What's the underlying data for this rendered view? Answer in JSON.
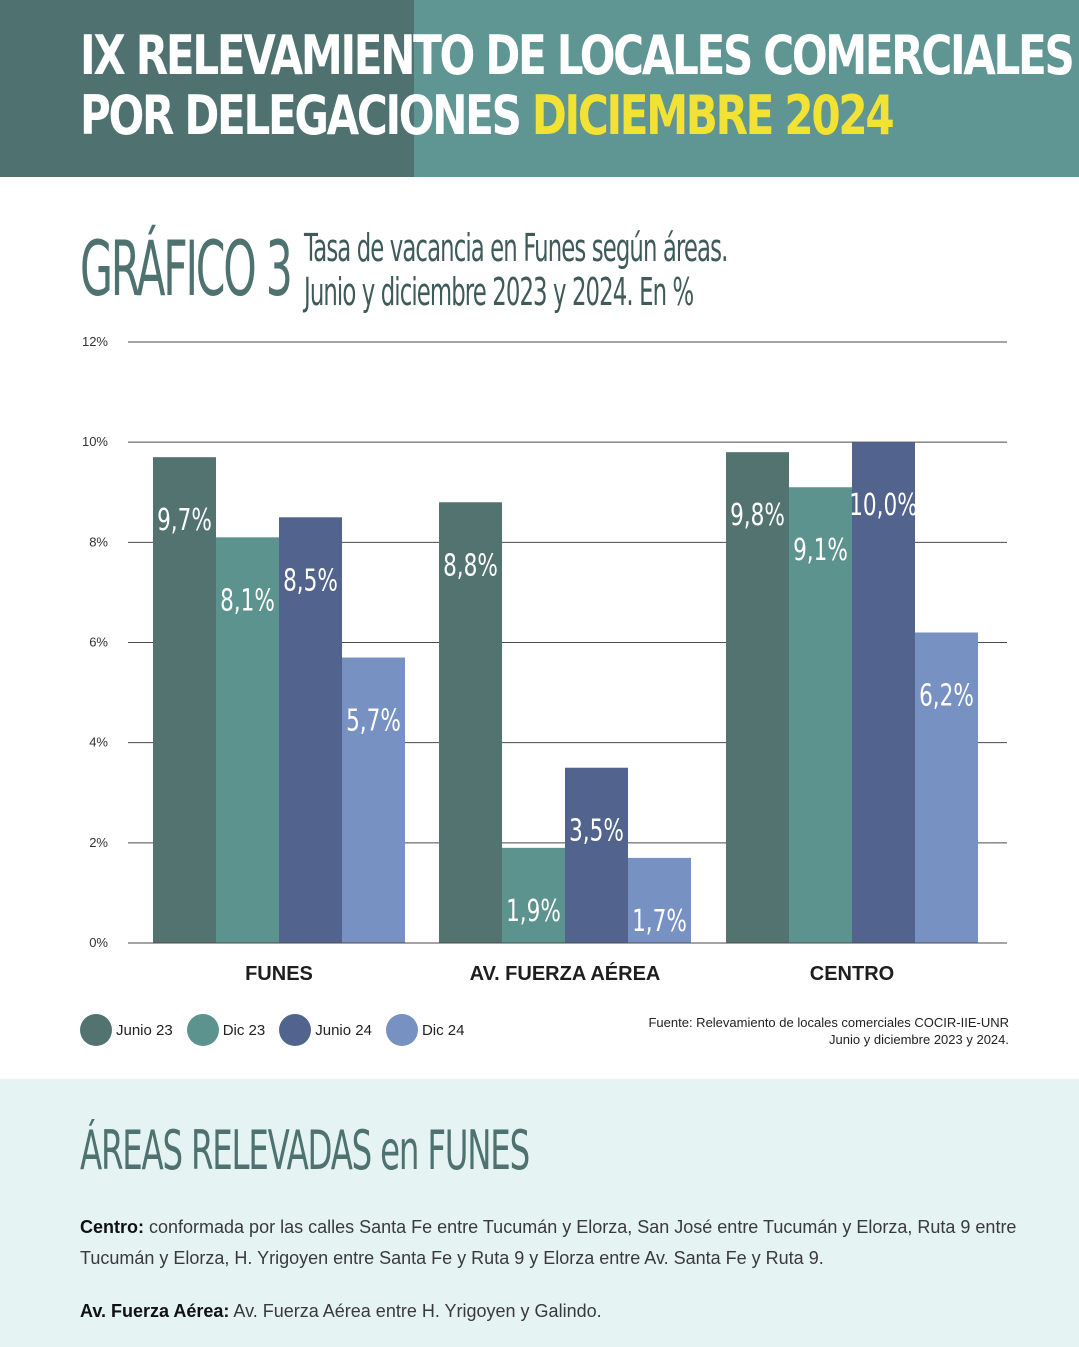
{
  "header": {
    "title_line1": "IX RELEVAMIENTO DE LOCALES COMERCIALES",
    "title_line2": "POR DELEGACIONES",
    "title_highlight": "DICIEMBRE 2024"
  },
  "chart_heading": {
    "label": "GRÁFICO 3",
    "subtitle_line1": "Tasa de vacancia en Funes según áreas.",
    "subtitle_line2": "Junio y diciembre 2023 y 2024. En %"
  },
  "chart_data": {
    "type": "bar",
    "categories": [
      "FUNES",
      "AV. FUERZA AÉREA",
      "CENTRO"
    ],
    "series": [
      {
        "name": "Junio 23",
        "color": "#52736f",
        "values": [
          9.7,
          8.8,
          9.8
        ],
        "labels": [
          "9,7%",
          "8,8%",
          "9,8%"
        ]
      },
      {
        "name": "Dic 23",
        "color": "#5d938e",
        "values": [
          8.1,
          1.9,
          9.1
        ],
        "labels": [
          "8,1%",
          "1,9%",
          "9,1%"
        ]
      },
      {
        "name": "Junio 24",
        "color": "#52648d",
        "values": [
          8.5,
          3.5,
          10.0
        ],
        "labels": [
          "8,5%",
          "3,5%",
          "10,0%"
        ]
      },
      {
        "name": "Dic 24",
        "color": "#7891c3",
        "values": [
          5.7,
          1.7,
          6.2
        ],
        "labels": [
          "5,7%",
          "1,7%",
          "6,2%"
        ]
      }
    ],
    "yticks": [
      0,
      2,
      4,
      6,
      8,
      10,
      12
    ],
    "ytick_labels": [
      "0%",
      "2%",
      "4%",
      "6%",
      "8%",
      "10%",
      "12%"
    ],
    "ylim": [
      0,
      12
    ],
    "grid": true,
    "legend_position": "bottom-left"
  },
  "source": {
    "line1": "Fuente: Relevamiento de locales comerciales COCIR-IIE-UNR",
    "line2": "Junio y diciembre 2023 y 2024."
  },
  "areas": {
    "heading": "ÁREAS RELEVADAS en FUNES",
    "centro_label": "Centro:",
    "centro_text": " conformada por las calles Santa Fe entre Tucumán y Elorza, San José entre Tucumán y Elorza, Ruta 9 entre Tucumán y Elorza, H. Yrigoyen entre Santa Fe y Ruta 9 y Elorza entre Av. Santa Fe y Ruta 9.",
    "fuerza_label": "Av. Fuerza Aérea:",
    "fuerza_text": " Av. Fuerza Aérea entre H. Yrigoyen y Galindo."
  }
}
